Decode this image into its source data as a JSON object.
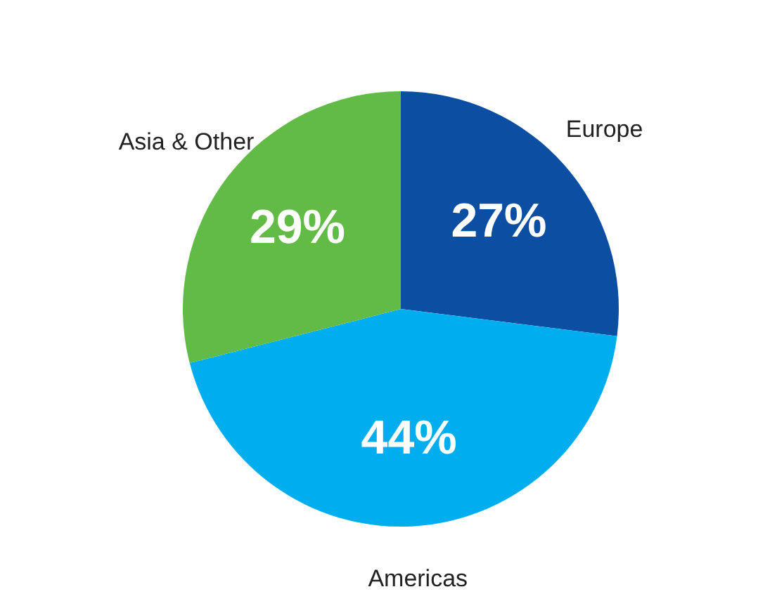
{
  "chart_data": {
    "type": "pie",
    "categories": [
      "Europe",
      "Americas",
      "Asia & Other"
    ],
    "values": [
      27,
      44,
      29
    ],
    "colors": [
      "#0b4ea2",
      "#00aeef",
      "#62bb46"
    ],
    "value_labels": [
      "27%",
      "44%",
      "29%"
    ]
  }
}
